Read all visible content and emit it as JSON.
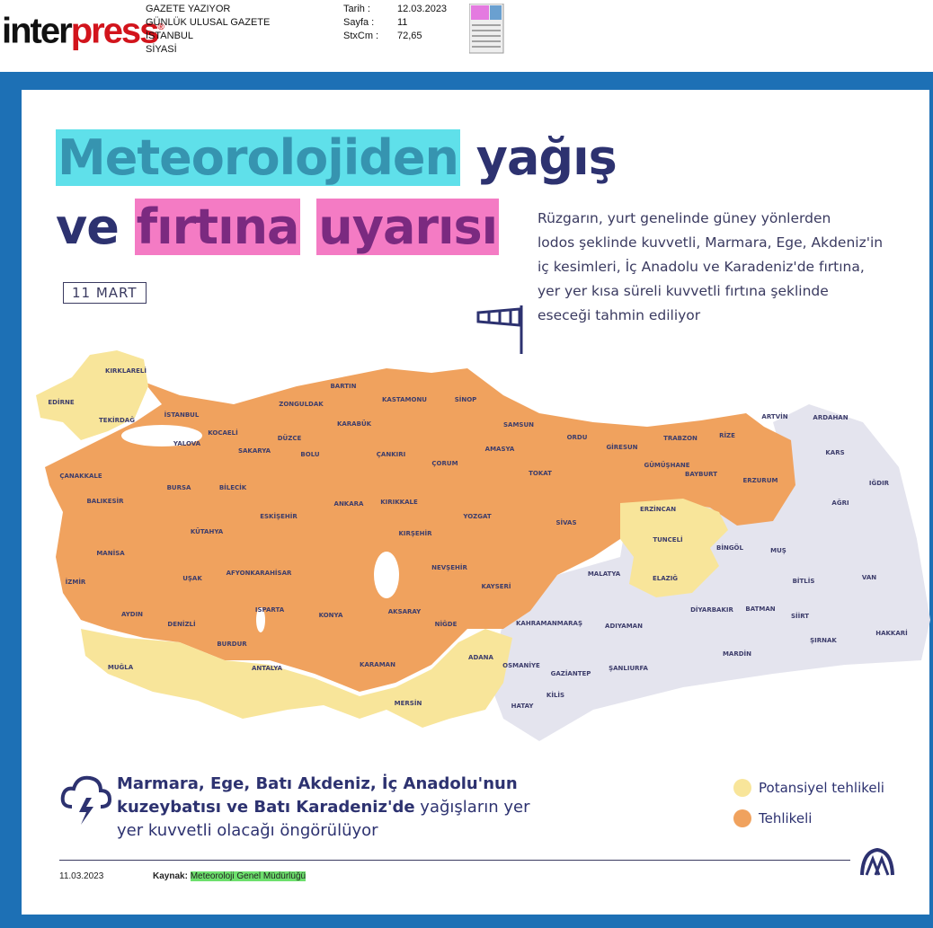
{
  "header": {
    "logo": {
      "part1": "inter",
      "part2": "press",
      "mark": "®"
    },
    "info": [
      "GAZETE YAZIYOR",
      "GÜNLÜK ULUSAL GAZETE",
      "İSTANBUL",
      "SİYASİ"
    ],
    "meta": [
      {
        "label": "Tarih :",
        "value": "12.03.2023"
      },
      {
        "label": "Sayfa :",
        "value": "11"
      },
      {
        "label": "StxCm :",
        "value": "72,65"
      }
    ]
  },
  "title": {
    "line1": [
      "Meteorolojiden",
      "yağış"
    ],
    "line2": [
      "ve",
      "fırtına",
      "uyarısı"
    ]
  },
  "date_badge": "11 MART",
  "description": [
    "Rüzgarın, yurt genelinde güney yönlerden",
    "lodos şeklinde kuvvetli, Marmara, Ege, Akdeniz'in",
    "iç kesimleri, İç Anadolu ve Karadeniz'de fırtına,",
    "yer yer kısa süreli kuvvetli fırtına şeklinde",
    "eseceği tahmin ediliyor"
  ],
  "map": {
    "cities": [
      "KIRKLARELİ",
      "EDİRNE",
      "TEKİRDAĞ",
      "İSTANBUL",
      "YALOVA",
      "KOCAELİ",
      "SAKARYA",
      "DÜZCE",
      "ZONGULDAK",
      "BARTIN",
      "KARABÜK",
      "KASTAMONU",
      "SİNOP",
      "SAMSUN",
      "BOLU",
      "ÇANKIRI",
      "ÇORUM",
      "AMASYA",
      "TOKAT",
      "ORDU",
      "GİRESUN",
      "TRABZON",
      "RİZE",
      "ARTVİN",
      "ARDAHAN",
      "KARS",
      "IĞDIR",
      "AĞRI",
      "ERZURUM",
      "BAYBURT",
      "GÜMÜŞHANE",
      "ERZİNCAN",
      "TUNCELİ",
      "ELAZIĞ",
      "BİNGÖL",
      "MUŞ",
      "BİTLİS",
      "VAN",
      "SİİRT",
      "BATMAN",
      "DİYARBAKIR",
      "MALATYA",
      "ADIYAMAN",
      "ŞANLIURFA",
      "MARDİN",
      "ŞIRNAK",
      "HAKKARİ",
      "KAHRAMANMARAŞ",
      "OSMANİYE",
      "GAZİANTEP",
      "KİLİS",
      "HATAY",
      "ADANA",
      "MERSİN",
      "KARAMAN",
      "NİĞDE",
      "AKSARAY",
      "NEVŞEHİR",
      "KAYSERİ",
      "KIRŞEHİR",
      "KIRIKKALE",
      "YOZGAT",
      "SİVAS",
      "ANKARA",
      "ESKİŞEHİR",
      "BİLECİK",
      "BURSA",
      "BALIKESİR",
      "ÇANAKKALE",
      "KÜTAHYA",
      "MANİSA",
      "İZMİR",
      "UŞAK",
      "AFYONKARAHİSAR",
      "KONYA",
      "ISPARTA",
      "DENİZLİ",
      "AYDIN",
      "MUĞLA",
      "BURDUR",
      "ANTALYA"
    ]
  },
  "bottom_text": {
    "bold": [
      "Marmara, Ege, Batı Akdeniz, İç Anadolu'nun",
      "kuzeybatısı ve Batı Karadeniz'de"
    ],
    "normal": [
      "yağışların yer",
      "yer kuvvetli olacağı öngörülüyor"
    ]
  },
  "legend": [
    {
      "label": "Potansiyel tehlikeli",
      "color": "#f8e59a"
    },
    {
      "label": "Tehlikeli",
      "color": "#f0a25e"
    }
  ],
  "footer": {
    "date": "11.03.2023",
    "source_label": "Kaynak:",
    "source": "Meteoroloji Genel Müdürlüğü"
  }
}
